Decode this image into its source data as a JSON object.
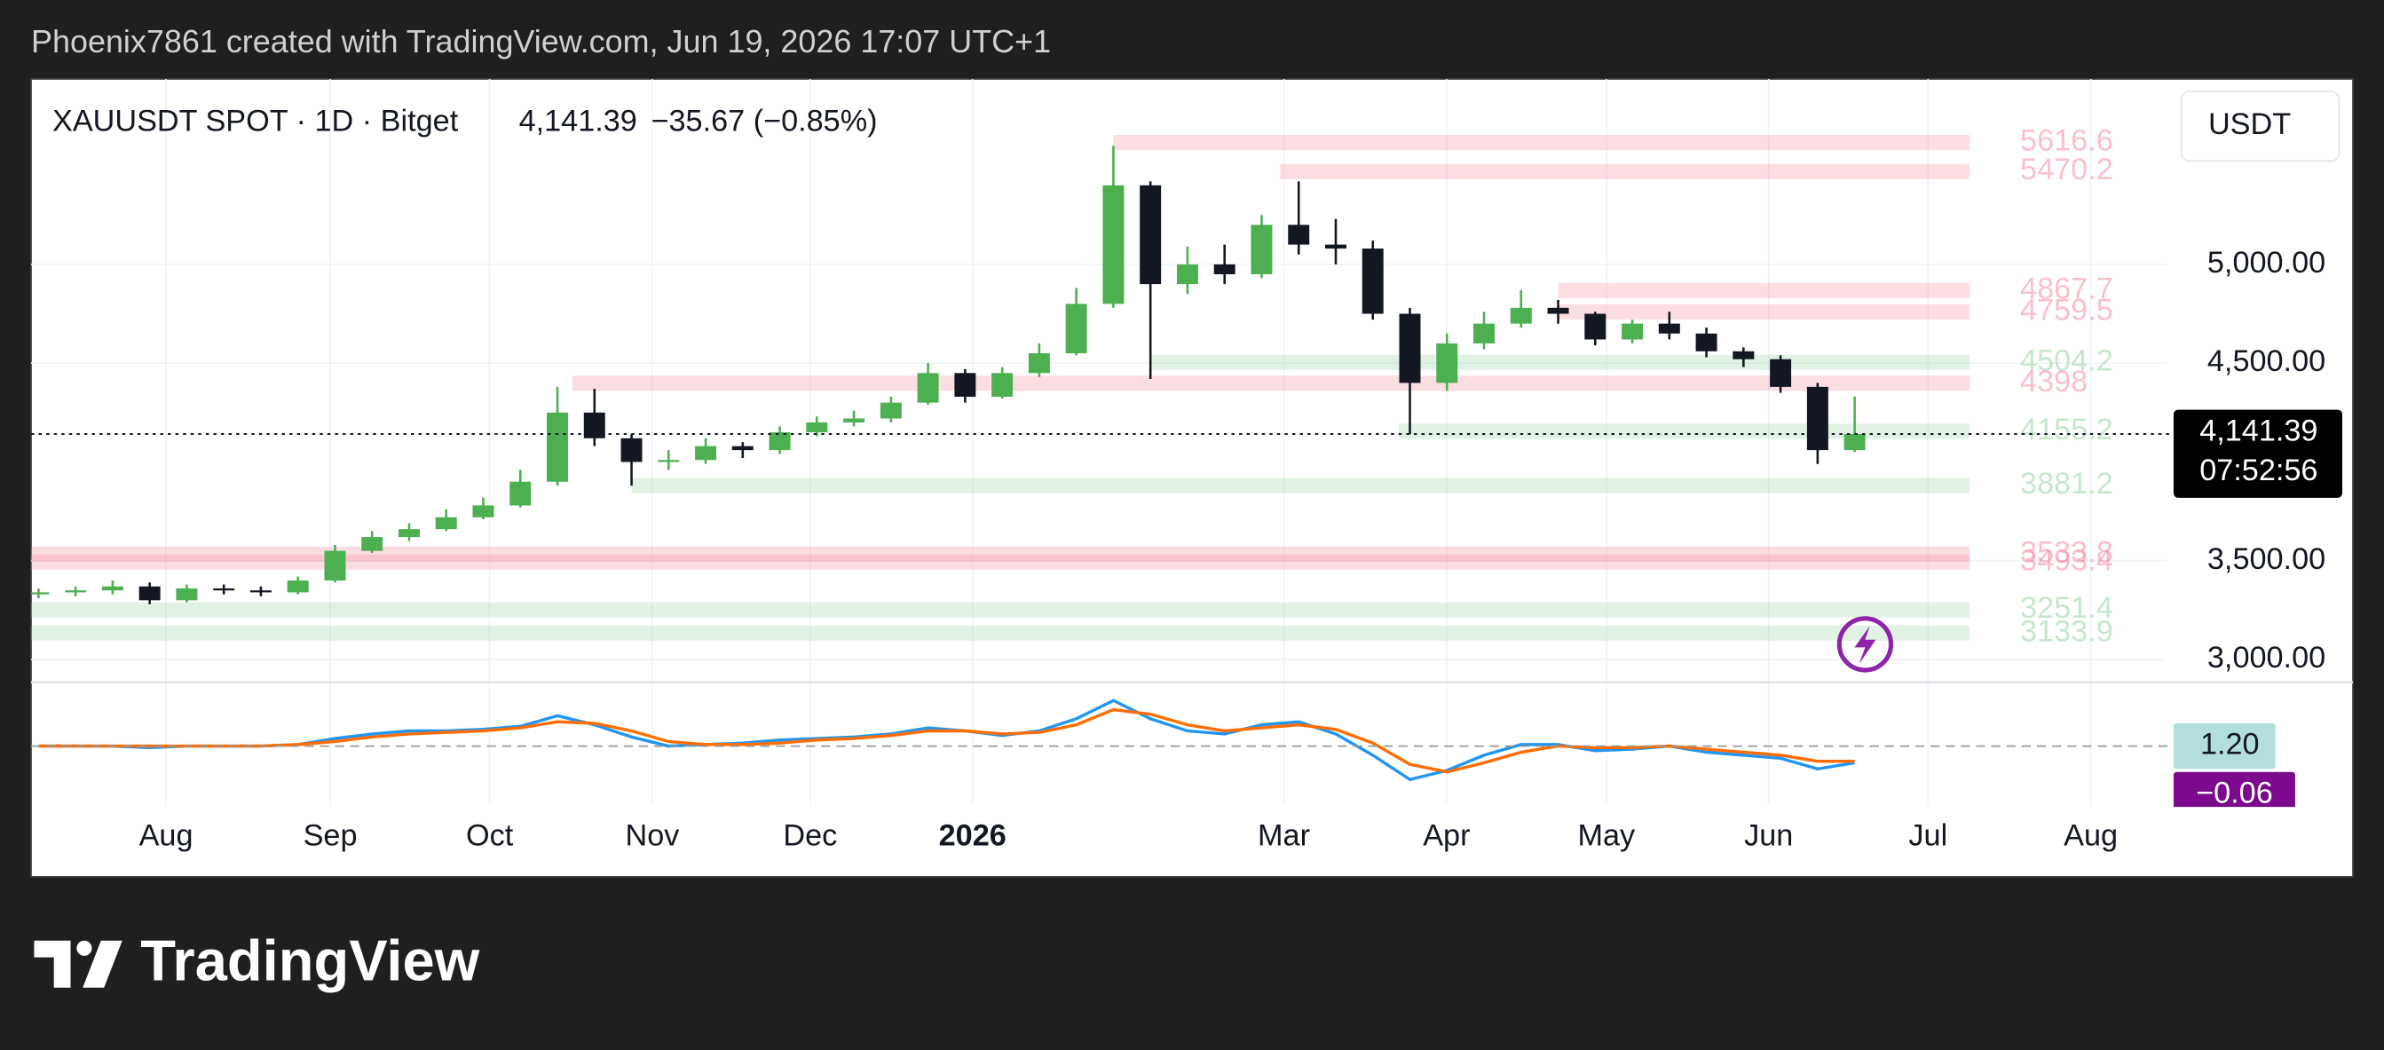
{
  "header": {
    "attribution": "Phoenix7861 created with TradingView.com, Jun 19, 2026 17:07 UTC+1",
    "brand": "TradingView"
  },
  "chart_data": {
    "type": "candlestick",
    "symbol": "XAUUSDT SPOT · 1D · Bitget",
    "change": "−35.67 (−0.85%)",
    "currency": "USDT",
    "countdown": "07:52:56",
    "price_line": {
      "value": 4141.39,
      "label": "4,141.39"
    },
    "up_color": "#4caf50",
    "down_color": "#131722",
    "open": [
      3330,
      3340,
      3350,
      3370,
      3300,
      3360,
      3350,
      3340,
      3400,
      3550,
      3620,
      3660,
      3720,
      3780,
      3900,
      4250,
      4120,
      4000,
      4010,
      4080,
      4060,
      4150,
      4200,
      4220,
      4300,
      4450,
      4330,
      4450,
      4550,
      4800,
      5400,
      4900,
      5000,
      4950,
      5200,
      5100,
      5080,
      4750,
      4400,
      4600,
      4700,
      4780,
      4750,
      4620,
      4700,
      4650,
      4560,
      4520,
      4380,
      4060
    ],
    "high": [
      3360,
      3370,
      3400,
      3390,
      3380,
      3380,
      3370,
      3420,
      3580,
      3650,
      3690,
      3760,
      3820,
      3960,
      4380,
      4370,
      4140,
      4060,
      4120,
      4100,
      4180,
      4230,
      4260,
      4330,
      4500,
      4470,
      4480,
      4600,
      4880,
      5600,
      5420,
      5090,
      5100,
      5250,
      5420,
      5230,
      5120,
      4780,
      4650,
      4760,
      4870,
      4820,
      4760,
      4720,
      4760,
      4680,
      4580,
      4540,
      4400,
      4330
    ],
    "low": [
      3310,
      3320,
      3330,
      3280,
      3290,
      3330,
      3320,
      3330,
      3390,
      3540,
      3600,
      3650,
      3710,
      3770,
      3880,
      4080,
      3880,
      3960,
      3990,
      4020,
      4040,
      4130,
      4180,
      4200,
      4290,
      4300,
      4320,
      4430,
      4540,
      4780,
      4420,
      4850,
      4900,
      4930,
      5050,
      5000,
      4720,
      4140,
      4360,
      4570,
      4680,
      4700,
      4590,
      4600,
      4620,
      4530,
      4480,
      4350,
      3990,
      4050
    ],
    "close": [
      3340,
      3350,
      3370,
      3300,
      3360,
      3350,
      3340,
      3400,
      3550,
      3620,
      3660,
      3720,
      3780,
      3900,
      4250,
      4120,
      4000,
      4010,
      4080,
      4060,
      4150,
      4200,
      4220,
      4300,
      4450,
      4330,
      4450,
      4550,
      4800,
      5400,
      4900,
      5000,
      4950,
      5200,
      5100,
      5080,
      4750,
      4400,
      4600,
      4700,
      4780,
      4750,
      4620,
      4700,
      4650,
      4560,
      4520,
      4380,
      4060,
      4141.39
    ],
    "xlim": [
      -0.2,
      57.4
    ],
    "xticks": [
      {
        "value": 3.44,
        "label": "Aug"
      },
      {
        "value": 7.87,
        "label": "Sep"
      },
      {
        "value": 12.17,
        "label": "Oct"
      },
      {
        "value": 16.56,
        "label": "Nov"
      },
      {
        "value": 20.82,
        "label": "Dec"
      },
      {
        "value": 25.2,
        "label": "2026",
        "bold": true
      },
      {
        "value": 33.6,
        "label": "Mar"
      },
      {
        "value": 37.99,
        "label": "Apr"
      },
      {
        "value": 42.3,
        "label": "May"
      },
      {
        "value": 46.68,
        "label": "Jun"
      },
      {
        "value": 50.98,
        "label": "Jul"
      },
      {
        "value": 55.37,
        "label": "Aug"
      }
    ],
    "ylim": [
      2885,
      5938
    ],
    "yticks": [
      {
        "value": 5000,
        "label": "5,000.00"
      },
      {
        "value": 4500,
        "label": "4,500.00"
      },
      {
        "value": 3500,
        "label": "3,500.00"
      },
      {
        "value": 3000,
        "label": "3,000.00"
      }
    ],
    "zones_end": 52.1,
    "zones": [
      {
        "value": 5616.6,
        "start": 29,
        "color": "#f48fa0"
      },
      {
        "value": 5470.2,
        "start": 33.5,
        "color": "#f48fa0"
      },
      {
        "value": 4867.7,
        "start": 41,
        "color": "#f48fa0"
      },
      {
        "value": 4759.5,
        "start": 41,
        "color": "#f48fa0"
      },
      {
        "value": 4504.2,
        "start": 30,
        "color": "#9ad3a4"
      },
      {
        "value": 4398,
        "start": 14.4,
        "color": "#f48fa0"
      },
      {
        "value": 4155.2,
        "start": 36.7,
        "color": "#9ad3a4"
      },
      {
        "value": 3881.2,
        "start": 16,
        "color": "#9ad3a4"
      },
      {
        "value": 3533.8,
        "start": -0.2,
        "color": "#f48fa0"
      },
      {
        "value": 3493.4,
        "start": -0.2,
        "color": "#f48fa0"
      },
      {
        "value": 3251.4,
        "start": -0.2,
        "color": "#9ad3a4"
      },
      {
        "value": 3133.9,
        "start": -0.2,
        "color": "#9ad3a4"
      }
    ],
    "macd": {
      "ylim": [
        -39,
        39
      ],
      "series": [
        {
          "color": "#2196f3",
          "values": [
            0,
            0,
            0,
            -1,
            0,
            0,
            0,
            1,
            5,
            8,
            10,
            10,
            11,
            13,
            20,
            14,
            6,
            0,
            1,
            2,
            4,
            5,
            6,
            8,
            12,
            10,
            7,
            10,
            18,
            30,
            18,
            10,
            8,
            14,
            16,
            8,
            -6,
            -22,
            -16,
            -6,
            1,
            1,
            -3,
            -2,
            0,
            -4,
            -6,
            -8,
            -15,
            -11
          ]
        },
        {
          "color": "#ff6d00",
          "values": [
            0,
            0,
            0,
            0,
            0,
            0,
            0,
            1,
            3,
            6,
            8,
            9,
            10,
            12,
            16,
            15,
            10,
            3,
            1,
            1,
            2,
            4,
            5,
            7,
            10,
            10,
            8,
            9,
            14,
            24,
            21,
            14,
            10,
            12,
            14,
            11,
            2,
            -12,
            -17,
            -11,
            -4,
            0,
            -1,
            -1,
            0,
            -2,
            -4,
            -6,
            -10,
            -10
          ]
        }
      ],
      "labels": [
        "1.20",
        "−0.06"
      ]
    }
  }
}
